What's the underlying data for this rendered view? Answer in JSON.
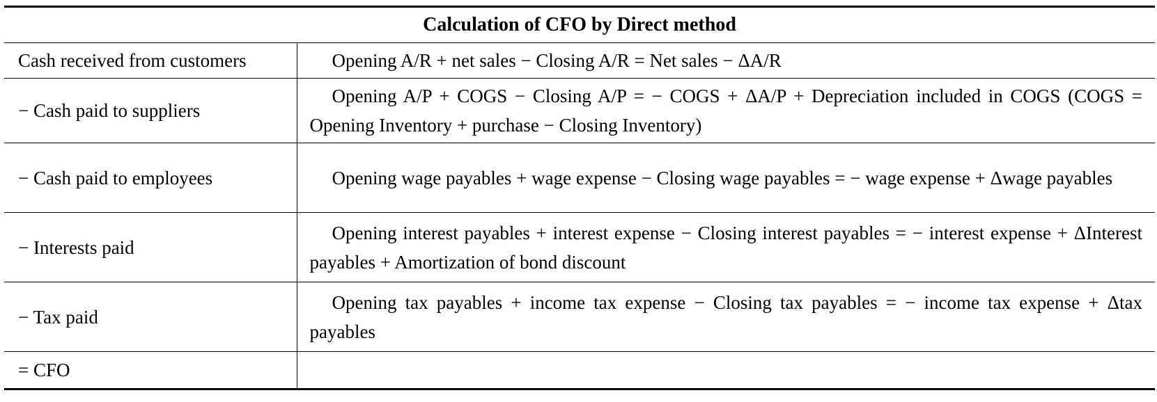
{
  "title": "Calculation of CFO by Direct method",
  "rows": [
    {
      "label": "Cash received from customers",
      "formula": "Opening A/R + net sales − Closing A/R = Net sales − ΔA/R"
    },
    {
      "label": "− Cash paid to suppliers",
      "formula": "Opening A/P + COGS − Closing A/P = − COGS + ΔA/P + Depreciation included in COGS (COGS = Opening Inventory + purchase − Closing Inventory)"
    },
    {
      "label": "− Cash paid to employees",
      "formula": "Opening wage payables + wage expense − Closing wage payables = − wage expense + Δwage payables"
    },
    {
      "label": "− Interests paid",
      "formula": "Opening interest payables + interest expense − Closing interest payables = − interest expense + ΔInterest payables + Amortization of bond discount"
    },
    {
      "label": "− Tax paid",
      "formula": "Opening tax payables + income tax expense − Closing tax payables = − income tax expense + Δtax payables"
    },
    {
      "label": "= CFO",
      "formula": ""
    }
  ]
}
